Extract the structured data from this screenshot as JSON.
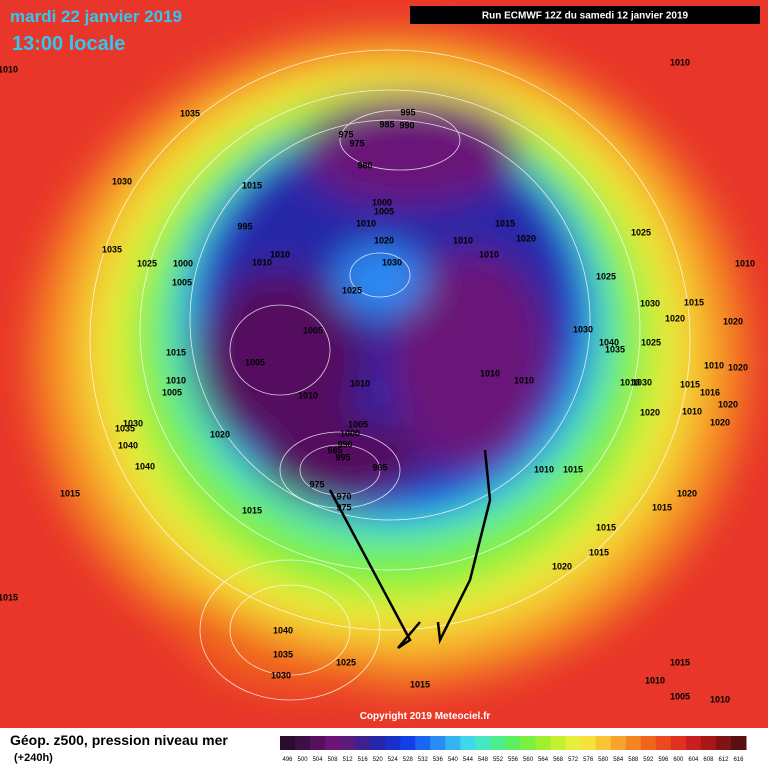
{
  "header": {
    "date": "mardi 22 janvier 2019",
    "time": "13:00 locale",
    "run": "Run ECMWF 12Z du samedi 12 janvier 2019"
  },
  "footer": {
    "field": "Géop. z500, pression niveau mer",
    "lead": "(+240h)",
    "copyright": "Copyright 2019 Meteociel.fr"
  },
  "colorbar": {
    "ticks": [
      496,
      500,
      504,
      508,
      512,
      516,
      520,
      524,
      528,
      532,
      536,
      540,
      544,
      548,
      552,
      556,
      560,
      564,
      568,
      572,
      576,
      580,
      584,
      588,
      592,
      596,
      600,
      604,
      608,
      612,
      616
    ],
    "colors": [
      "#2b0b2e",
      "#3d0f45",
      "#55105e",
      "#6b1378",
      "#5a1c7a",
      "#3e2090",
      "#2626a8",
      "#1a2ec8",
      "#1040e6",
      "#1a66f0",
      "#2a8cf5",
      "#33b5f2",
      "#3ed8e8",
      "#45e8c0",
      "#4cee8f",
      "#5cf060",
      "#7cf040",
      "#a0f030",
      "#c4f030",
      "#e6f03a",
      "#f6e23a",
      "#f8c632",
      "#f8a42c",
      "#f48424",
      "#f0641e",
      "#ea4a1e",
      "#e0301e",
      "#c82020",
      "#a81818",
      "#801414",
      "#5a1010"
    ]
  },
  "isobar_labels": [
    1010,
    1035,
    1030,
    1015,
    995,
    1035,
    1025,
    1010,
    1010,
    1000,
    1005,
    995,
    985,
    990,
    975,
    975,
    980,
    1000,
    1005,
    1010,
    1020,
    1030,
    1025,
    1010,
    1015,
    1020,
    1010,
    1010,
    1025,
    1010,
    1025,
    1030,
    1015,
    1020,
    1020,
    1030,
    1040,
    1035,
    1025,
    1010,
    1020,
    1010,
    1030,
    1015,
    1010,
    1016,
    1020,
    1020,
    1020,
    1005,
    1005,
    1015,
    1010,
    1005,
    1010,
    1010,
    1020,
    1030,
    1035,
    1040,
    1040,
    1015,
    1015,
    1005,
    1000,
    990,
    985,
    995,
    965,
    975,
    970,
    975,
    1010,
    1010,
    1010,
    1015,
    1020,
    1015,
    1015,
    1015,
    1020,
    1015,
    1040,
    1035,
    1030,
    1025,
    1015,
    1015,
    1010,
    1005,
    1010
  ]
}
